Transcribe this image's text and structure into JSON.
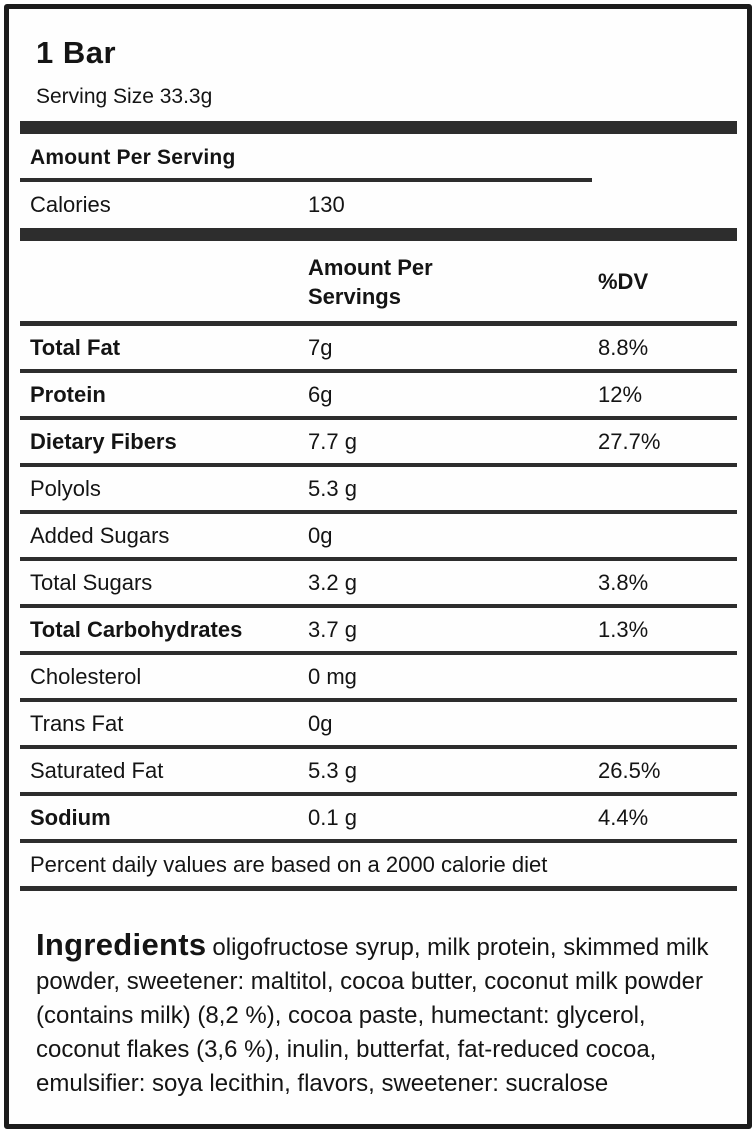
{
  "label": {
    "title": "1 Bar",
    "serving_size": "Serving Size 33.3g",
    "amount_per_serving_header": "Amount Per Serving",
    "calories": {
      "label": "Calories",
      "value": "130"
    },
    "table": {
      "amount_column_header": "Amount Per Servings",
      "dv_column_header": "%DV",
      "rows": [
        {
          "name": "Total Fat",
          "amount": "7g",
          "dv": "8.8%"
        },
        {
          "name": "Protein",
          "amount": "6g",
          "dv": "12%"
        },
        {
          "name": "Dietary Fibers",
          "amount": "7.7 g",
          "dv": "27.7%"
        },
        {
          "name": "Polyols",
          "amount": "5.3 g",
          "dv": ""
        },
        {
          "name": "Added Sugars",
          "amount": "0g",
          "dv": ""
        },
        {
          "name": "Total Sugars",
          "amount": "3.2 g",
          "dv": "3.8%"
        },
        {
          "name": "Total Carbohydrates",
          "amount": "3.7 g",
          "dv": "1.3%"
        },
        {
          "name": "Cholesterol",
          "amount": "0 mg",
          "dv": ""
        },
        {
          "name": "Trans Fat",
          "amount": "0g",
          "dv": ""
        },
        {
          "name": "Saturated Fat",
          "amount": "5.3 g",
          "dv": "26.5%"
        },
        {
          "name": "Sodium",
          "amount": "0.1 g",
          "dv": "4.4%"
        }
      ]
    },
    "footnote": "Percent daily values are based on a 2000 calorie diet",
    "ingredients": {
      "title": "Ingredients",
      "text": "oligofructose syrup, milk protein, skimmed milk powder, sweetener: maltitol, cocoa butter, coconut milk powder (contains milk) (8,2 %), cocoa paste, humectant: glycerol, coconut flakes (3,6 %), inulin, butterfat, fat-reduced cocoa, emulsifier: soya lecithin, flavors, sweetener: sucralose"
    },
    "colors": {
      "divider": "#2d2d2d",
      "border": "#1c1c1c",
      "text": "#141414",
      "background": "#fefefe"
    }
  }
}
